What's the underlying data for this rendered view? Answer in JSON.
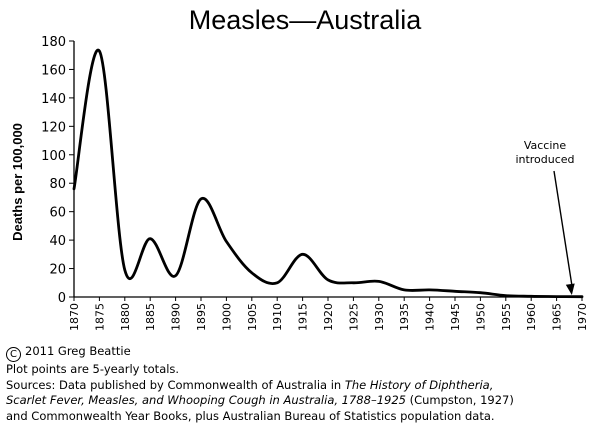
{
  "chart_data": {
    "type": "line",
    "title": "Measles—Australia",
    "ylabel": "Deaths per 100,000",
    "xlabel": "",
    "ylim": [
      0,
      180
    ],
    "xlim": [
      1870,
      1970
    ],
    "y_ticks": [
      "0",
      "20",
      "40",
      "60",
      "80",
      "100",
      "120",
      "140",
      "160",
      "180"
    ],
    "x_ticks": [
      "1870",
      "1875",
      "1880",
      "1885",
      "1890",
      "1895",
      "1900",
      "1905",
      "1910",
      "1915",
      "1920",
      "1925",
      "1930",
      "1935",
      "1940",
      "1945",
      "1950",
      "1955",
      "1960",
      "1965",
      "1970"
    ],
    "grid": false,
    "series": [
      {
        "x": [
          1870,
          1875,
          1880,
          1885,
          1890,
          1895,
          1900,
          1905,
          1910,
          1915,
          1920,
          1925,
          1930,
          1935,
          1940,
          1945,
          1950,
          1955,
          1960,
          1965,
          1970
        ],
        "y": [
          76,
          173,
          19,
          41,
          15,
          69,
          39,
          17,
          10,
          30,
          12,
          10,
          11,
          5,
          5,
          4,
          3,
          1,
          0.5,
          0.3,
          0.2
        ]
      }
    ],
    "annotations": [
      {
        "text_lines": [
          "Vaccine",
          "introduced"
        ],
        "x": 1968,
        "y": 0
      }
    ]
  },
  "footer": {
    "copyright_symbol": "C",
    "copyright": "2011 Greg Beattie",
    "note": "Plot points are 5-yearly totals.",
    "sources_prefix": "Sources: Data published by Commonwealth of Australia in ",
    "sources_title_a": "The History of Diphtheria,",
    "sources_title_b": "Scarlet Fever, Measles, and Whooping Cough in Australia, 1788–1925",
    "sources_mid": " (Cumpston, 1927)",
    "sources_end": "and Commonwealth Year Books, plus Australian Bureau of Statistics population data."
  }
}
